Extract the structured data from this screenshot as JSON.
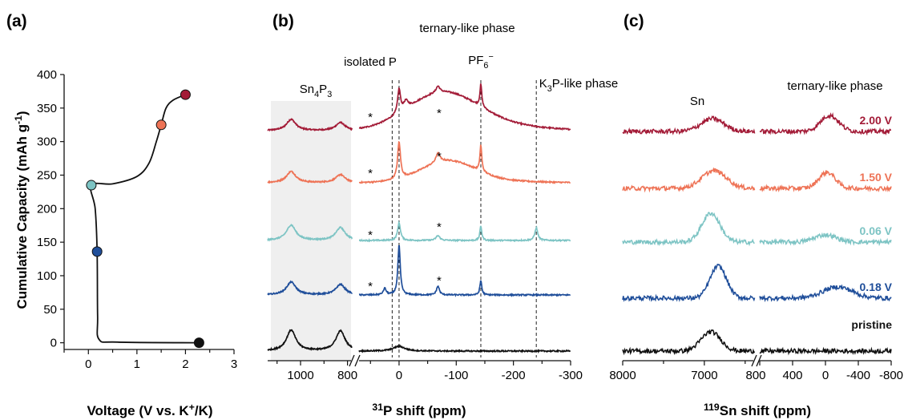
{
  "colors": {
    "pristine": "#111111",
    "0.18 V": "#1f4e9a",
    "0.06 V": "#7dc4c4",
    "1.50 V": "#ee7356",
    "2.00 V": "#a31b37",
    "shade": "#efefef"
  },
  "panels": {
    "a": {
      "label": "(a)"
    },
    "b": {
      "label": "(b)"
    },
    "c": {
      "label": "(c)"
    }
  },
  "chart_data": [
    {
      "panel": "(a)",
      "type": "line",
      "xlabel": "Voltage (V vs. K⁺/K)",
      "ylabel": "Cumulative Capacity (mAh g⁻¹)",
      "xlim": [
        -0.5,
        3
      ],
      "ylim": [
        -10,
        400
      ],
      "x_ticks": [
        0,
        1,
        2,
        3
      ],
      "y_ticks": [
        0,
        50,
        100,
        150,
        200,
        250,
        300,
        350,
        400
      ],
      "curve": [
        [
          2.28,
          0
        ],
        [
          0.6,
          1
        ],
        [
          0.22,
          5
        ],
        [
          0.19,
          40
        ],
        [
          0.18,
          136
        ],
        [
          0.14,
          200
        ],
        [
          0.06,
          235
        ],
        [
          0.5,
          237
        ],
        [
          1.0,
          248
        ],
        [
          1.25,
          268
        ],
        [
          1.4,
          300
        ],
        [
          1.5,
          325
        ],
        [
          1.6,
          350
        ],
        [
          1.75,
          362
        ],
        [
          2.0,
          370
        ]
      ],
      "markers": [
        {
          "label": "2.00 V",
          "x": 2.0,
          "y": 370
        },
        {
          "label": "1.50 V",
          "x": 1.5,
          "y": 325
        },
        {
          "label": "0.06 V",
          "x": 0.06,
          "y": 235
        },
        {
          "label": "0.18 V",
          "x": 0.18,
          "y": 136
        },
        {
          "label": "pristine",
          "x": 2.28,
          "y": 0
        }
      ]
    },
    {
      "panel": "(b)",
      "type": "line",
      "xlabel": "³¹P shift (ppm)",
      "x_ticks_left": [
        1000,
        800
      ],
      "x_ticks_right": [
        0,
        -100,
        -200,
        -300
      ],
      "broken_axis": true,
      "shaded_region_ppm": [
        1140,
        785
      ],
      "annotations": [
        "Sn₄P₃",
        "isolated P",
        "ternary-like phase",
        "PF₆⁻",
        "K₃P-like phase"
      ],
      "dashed_lines_ppm": [
        12,
        0,
        -143,
        -240
      ],
      "asterisk": "*",
      "series": [
        "pristine",
        "0.18 V",
        "0.06 V",
        "1.50 V",
        "2.00 V"
      ]
    },
    {
      "panel": "(c)",
      "type": "line",
      "xlabel": "¹¹⁹Sn shift (ppm)",
      "x_ticks_left": [
        8000,
        7000
      ],
      "x_ticks_right": [
        800,
        400,
        0,
        -400,
        -800
      ],
      "broken_axis": true,
      "annotations": [
        "Sn",
        "ternary-like phase"
      ],
      "series": [
        "pristine",
        "0.18 V",
        "0.06 V",
        "1.50 V",
        "2.00 V"
      ]
    }
  ]
}
